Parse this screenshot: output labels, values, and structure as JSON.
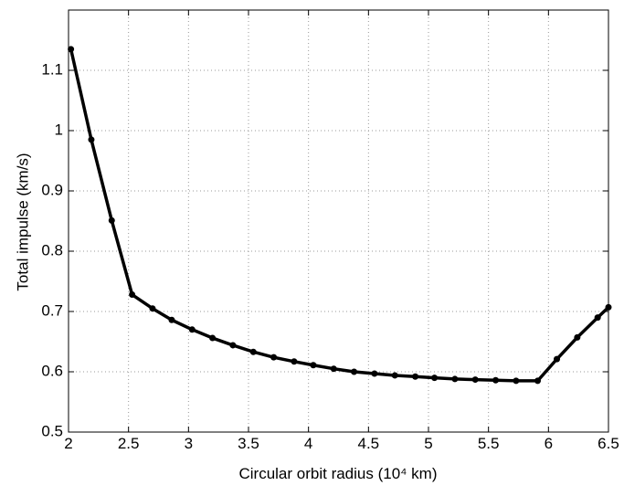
{
  "chart_data": {
    "type": "line",
    "x_label": "Circular orbit radius (10⁴ km)",
    "y_label": "Total impulse (km/s)",
    "x": [
      2.02,
      2.19,
      2.36,
      2.53,
      2.7,
      2.86,
      3.03,
      3.2,
      3.37,
      3.54,
      3.71,
      3.88,
      4.04,
      4.21,
      4.38,
      4.55,
      4.72,
      4.89,
      5.05,
      5.22,
      5.39,
      5.56,
      5.73,
      5.91,
      6.07,
      6.24,
      6.41,
      6.5
    ],
    "series": [
      {
        "color": "#000000",
        "values": [
          1.135,
          0.985,
          0.851,
          0.728,
          0.705,
          0.686,
          0.67,
          0.656,
          0.644,
          0.633,
          0.624,
          0.617,
          0.611,
          0.605,
          0.6,
          0.597,
          0.594,
          0.592,
          0.59,
          0.588,
          0.587,
          0.586,
          0.585,
          0.585,
          0.621,
          0.657,
          0.69,
          0.707
        ]
      }
    ],
    "xlim": [
      2,
      6.5
    ],
    "ylim": [
      0.5,
      1.2
    ],
    "xticks": [
      2,
      2.5,
      3,
      3.5,
      4,
      4.5,
      5,
      5.5,
      6,
      6.5
    ],
    "yticks": [
      0.5,
      0.6,
      0.7,
      0.8,
      0.9,
      1,
      1.1
    ],
    "grid": true
  }
}
